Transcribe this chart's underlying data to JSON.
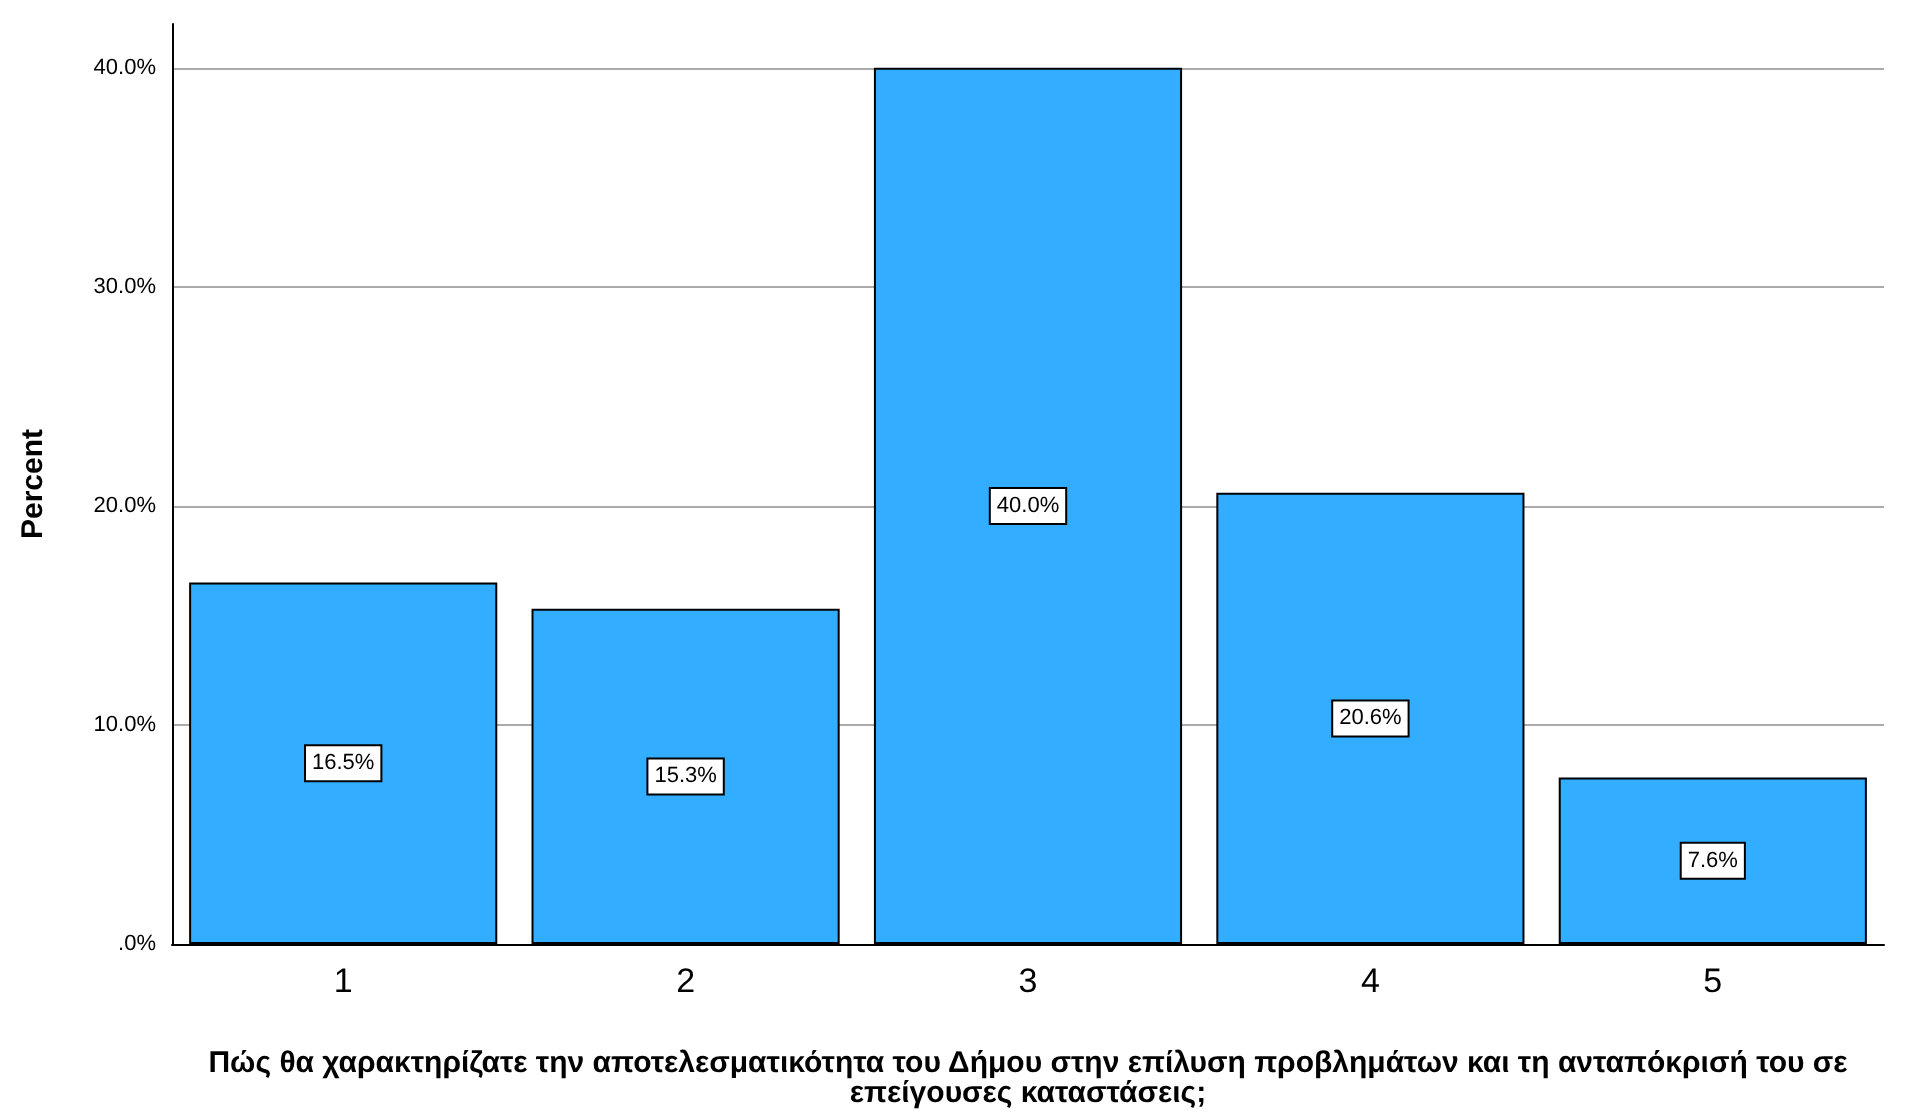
{
  "chart_data": {
    "type": "bar",
    "xlabel": "Πώς θα χαρακτηρίζατε την αποτελεσματικότητα του Δήμου στην επίλυση προβλημάτων και τη ανταπόκρισή του σε επείγουσες καταστάσεις;",
    "ylabel": "Percent",
    "categories": [
      "1",
      "2",
      "3",
      "4",
      "5"
    ],
    "values": [
      16.5,
      15.3,
      40.0,
      20.6,
      7.6
    ],
    "value_labels": [
      "16.5%",
      "15.3%",
      "40.0%",
      "20.6%",
      "7.6%"
    ],
    "color": "#33adff",
    "ylim": [
      0,
      42
    ],
    "yticks": [
      {
        "value": 0,
        "label": ".0%"
      },
      {
        "value": 10,
        "label": "10.0%"
      },
      {
        "value": 20,
        "label": "20.0%"
      },
      {
        "value": 30,
        "label": "30.0%"
      },
      {
        "value": 40,
        "label": "40.0%"
      }
    ],
    "grid": "y"
  }
}
